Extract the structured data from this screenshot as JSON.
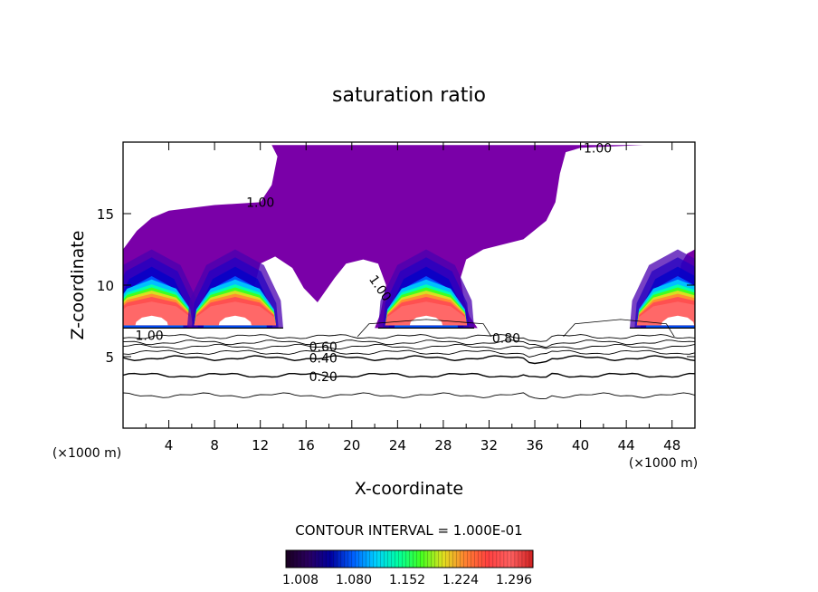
{
  "chart_data": {
    "type": "heatmap",
    "title": "saturation ratio",
    "xlabel": "X-coordinate",
    "ylabel": "Z-coordinate",
    "x_unit_left": "(×1000 m)",
    "x_unit_right": "(×1000 m)",
    "xlim": [
      0,
      50
    ],
    "ylim": [
      0,
      20
    ],
    "x_ticks": [
      4,
      8,
      12,
      16,
      20,
      24,
      28,
      32,
      36,
      40,
      44,
      48
    ],
    "y_ticks": [
      5,
      10,
      15
    ],
    "contour_interval_text": "CONTOUR INTERVAL = 1.000E-01",
    "colorbar": {
      "min": 1.0,
      "max": 1.33,
      "tick_labels": [
        "1.008",
        "1.080",
        "1.152",
        "1.224",
        "1.296"
      ],
      "colors": [
        "#1a0020",
        "#2a0060",
        "#0000a0",
        "#0060ff",
        "#00d0ff",
        "#00ffa0",
        "#40ff20",
        "#e0e020",
        "#ff8030",
        "#ff4040",
        "#ff6060",
        "#d02020"
      ]
    },
    "contour_labels": [
      {
        "text": "1.00",
        "x": 12.0,
        "y": 15.8
      },
      {
        "text": "1.00",
        "x": 22.5,
        "y": 9.8
      },
      {
        "text": "1.00",
        "x": 2.3,
        "y": 6.5
      },
      {
        "text": "1.00",
        "x": 41.5,
        "y": 19.6
      },
      {
        "text": "0.80",
        "x": 33.5,
        "y": 6.3
      },
      {
        "text": "0.60",
        "x": 17.5,
        "y": 5.7
      },
      {
        "text": "0.40",
        "x": 17.5,
        "y": 4.9
      },
      {
        "text": "0.20",
        "x": 17.5,
        "y": 3.6
      }
    ],
    "subsaturated_contours": [
      {
        "level": 0.2,
        "base_z": 3.7
      },
      {
        "level": 0.3,
        "base_z": 2.3
      },
      {
        "level": 0.4,
        "base_z": 4.9
      },
      {
        "level": 0.5,
        "base_z": 5.3
      },
      {
        "level": 0.6,
        "base_z": 5.7
      },
      {
        "level": 0.7,
        "base_z": 6.0
      },
      {
        "level": 0.8,
        "base_z": 6.4
      }
    ],
    "supersaturated_cells": [
      {
        "x_center": 2.5,
        "z_base": 7.0,
        "peak": 1.3
      },
      {
        "x_center": 9.8,
        "z_base": 7.0,
        "peak": 1.3
      },
      {
        "x_center": 26.5,
        "z_base": 7.0,
        "peak": 1.3
      },
      {
        "x_center": 48.5,
        "z_base": 7.0,
        "peak": 1.3
      }
    ]
  }
}
